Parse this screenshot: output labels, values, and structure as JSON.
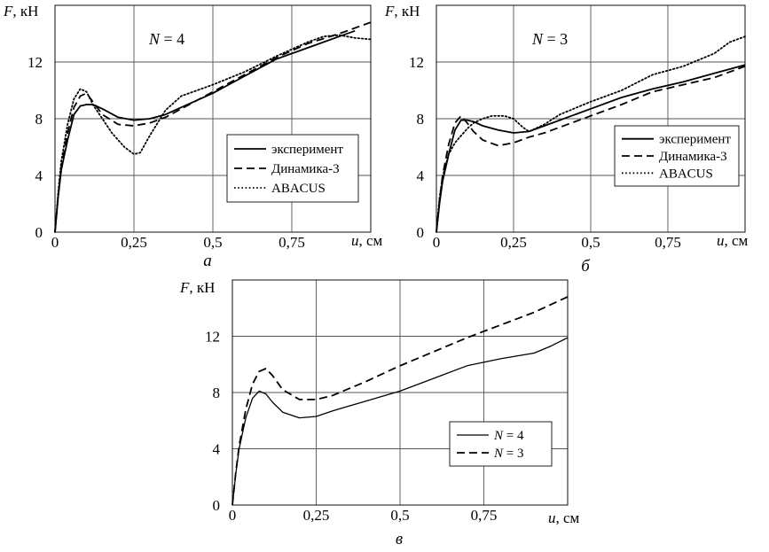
{
  "chart_data": [
    {
      "type": "line",
      "panel": "a",
      "caption": "а",
      "annotation": {
        "var": "N",
        "text": " = 4"
      },
      "ylabel": {
        "var": "F",
        "unit": ", кН"
      },
      "xlabel": {
        "var": "u",
        "unit": ", см"
      },
      "xlim": [
        0,
        1.0
      ],
      "ylim": [
        0,
        16
      ],
      "xticks": [
        0,
        0.25,
        0.5,
        0.75
      ],
      "xtick_labels": [
        "0",
        "0,25",
        "0,5",
        "0,75"
      ],
      "yticks": [
        0,
        4,
        8,
        12
      ],
      "ytick_labels": [
        "0",
        "4",
        "8",
        "12"
      ],
      "grid": true,
      "legend": "lower-right",
      "series": [
        {
          "name": "эксперимент",
          "style": "solid",
          "x": [
            0,
            0.01,
            0.02,
            0.04,
            0.06,
            0.08,
            0.1,
            0.12,
            0.15,
            0.2,
            0.25,
            0.3,
            0.35,
            0.4,
            0.5,
            0.6,
            0.7,
            0.8,
            0.9,
            0.95
          ],
          "y": [
            0,
            2.5,
            4.4,
            6.5,
            8.3,
            8.9,
            9.0,
            9.0,
            8.7,
            8.1,
            7.9,
            8.0,
            8.3,
            8.8,
            9.8,
            11.0,
            12.2,
            13.0,
            13.8,
            14.2
          ]
        },
        {
          "name": "Динамика-3",
          "style": "dashed",
          "x": [
            0,
            0.01,
            0.02,
            0.04,
            0.06,
            0.08,
            0.1,
            0.12,
            0.15,
            0.2,
            0.25,
            0.3,
            0.35,
            0.4,
            0.5,
            0.6,
            0.7,
            0.8,
            0.9,
            1.0
          ],
          "y": [
            0,
            2.6,
            4.6,
            7.0,
            8.8,
            9.6,
            9.8,
            9.2,
            8.3,
            7.6,
            7.5,
            7.7,
            8.1,
            8.7,
            9.9,
            11.1,
            12.3,
            13.3,
            14.0,
            14.8
          ]
        },
        {
          "name": "ABACUS",
          "style": "dotted",
          "x": [
            0,
            0.01,
            0.02,
            0.04,
            0.06,
            0.08,
            0.1,
            0.12,
            0.15,
            0.18,
            0.22,
            0.25,
            0.27,
            0.3,
            0.35,
            0.4,
            0.5,
            0.6,
            0.7,
            0.8,
            0.85,
            0.9,
            0.95,
            1.0
          ],
          "y": [
            0,
            2.8,
            5.0,
            7.6,
            9.4,
            10.1,
            9.9,
            9.0,
            8.0,
            7.0,
            6.0,
            5.5,
            5.6,
            6.8,
            8.6,
            9.6,
            10.4,
            11.3,
            12.4,
            13.4,
            13.8,
            13.9,
            13.7,
            13.6
          ]
        }
      ]
    },
    {
      "type": "line",
      "panel": "b",
      "caption": "б",
      "annotation": {
        "var": "N",
        "text": " = 3"
      },
      "ylabel": {
        "var": "F",
        "unit": ", кН"
      },
      "xlabel": {
        "var": "u",
        "unit": ", см"
      },
      "xlim": [
        0,
        1.0
      ],
      "ylim": [
        0,
        16
      ],
      "xticks": [
        0,
        0.25,
        0.5,
        0.75
      ],
      "xtick_labels": [
        "0",
        "0,25",
        "0,5",
        "0,75"
      ],
      "yticks": [
        0,
        4,
        8,
        12
      ],
      "ytick_labels": [
        "0",
        "4",
        "8",
        "12"
      ],
      "grid": true,
      "legend": "middle-right",
      "series": [
        {
          "name": "эксперимент",
          "style": "solid",
          "x": [
            0,
            0.01,
            0.02,
            0.04,
            0.06,
            0.08,
            0.1,
            0.12,
            0.15,
            0.2,
            0.25,
            0.3,
            0.35,
            0.4,
            0.5,
            0.6,
            0.7,
            0.8,
            0.9,
            1.0
          ],
          "y": [
            0,
            2.0,
            3.6,
            5.5,
            7.2,
            7.9,
            7.9,
            7.8,
            7.5,
            7.2,
            7.0,
            7.1,
            7.5,
            7.9,
            8.7,
            9.5,
            10.1,
            10.6,
            11.2,
            11.8
          ]
        },
        {
          "name": "Динамика-3",
          "style": "dashed",
          "x": [
            0,
            0.01,
            0.02,
            0.04,
            0.06,
            0.08,
            0.1,
            0.12,
            0.15,
            0.2,
            0.25,
            0.3,
            0.35,
            0.4,
            0.5,
            0.6,
            0.7,
            0.8,
            0.9,
            1.0
          ],
          "y": [
            0,
            2.2,
            4.0,
            6.2,
            7.7,
            8.2,
            7.7,
            7.1,
            6.5,
            6.1,
            6.3,
            6.7,
            7.0,
            7.4,
            8.2,
            9.0,
            9.9,
            10.4,
            10.9,
            11.7
          ]
        },
        {
          "name": "ABACUS",
          "style": "dotted",
          "x": [
            0,
            0.01,
            0.02,
            0.04,
            0.06,
            0.08,
            0.1,
            0.12,
            0.15,
            0.18,
            0.2,
            0.22,
            0.25,
            0.28,
            0.3,
            0.35,
            0.4,
            0.5,
            0.6,
            0.7,
            0.8,
            0.9,
            0.95,
            1.0
          ],
          "y": [
            0,
            2.4,
            3.9,
            5.5,
            6.3,
            6.8,
            7.3,
            7.7,
            8.0,
            8.2,
            8.2,
            8.2,
            8.0,
            7.4,
            7.1,
            7.6,
            8.3,
            9.2,
            10.0,
            11.1,
            11.7,
            12.6,
            13.4,
            13.8
          ]
        }
      ]
    },
    {
      "type": "line",
      "panel": "c",
      "caption": "в",
      "ylabel": {
        "var": "F",
        "unit": ", кН"
      },
      "xlabel": {
        "var": "u",
        "unit": ", см"
      },
      "xlim": [
        0,
        1.0
      ],
      "ylim": [
        0,
        16
      ],
      "xticks": [
        0,
        0.25,
        0.5,
        0.75
      ],
      "xtick_labels": [
        "0",
        "0,25",
        "0,5",
        "0,75"
      ],
      "yticks": [
        0,
        4,
        8,
        12
      ],
      "ytick_labels": [
        "0",
        "4",
        "8",
        "12"
      ],
      "grid": true,
      "legend": "lower-right",
      "series": [
        {
          "name": "N = 4",
          "name_var": "N",
          "name_rest": " = 4",
          "style": "thin",
          "x": [
            0,
            0.01,
            0.02,
            0.04,
            0.06,
            0.08,
            0.1,
            0.12,
            0.15,
            0.2,
            0.25,
            0.3,
            0.4,
            0.5,
            0.6,
            0.7,
            0.8,
            0.9,
            0.95,
            1.0
          ],
          "y": [
            0,
            2.2,
            4.0,
            6.2,
            7.6,
            8.1,
            7.9,
            7.3,
            6.6,
            6.2,
            6.3,
            6.7,
            7.4,
            8.1,
            9.0,
            9.9,
            10.4,
            10.8,
            11.3,
            11.9
          ]
        },
        {
          "name": "N = 3",
          "name_var": "N",
          "name_rest": " = 3",
          "style": "dashed",
          "x": [
            0,
            0.01,
            0.02,
            0.04,
            0.06,
            0.08,
            0.1,
            0.12,
            0.15,
            0.2,
            0.25,
            0.3,
            0.4,
            0.5,
            0.6,
            0.7,
            0.8,
            0.9,
            1.0
          ],
          "y": [
            0,
            2.3,
            4.2,
            6.8,
            8.6,
            9.5,
            9.7,
            9.2,
            8.2,
            7.5,
            7.5,
            7.8,
            8.8,
            9.9,
            10.9,
            11.9,
            12.8,
            13.7,
            14.8
          ]
        }
      ]
    }
  ]
}
